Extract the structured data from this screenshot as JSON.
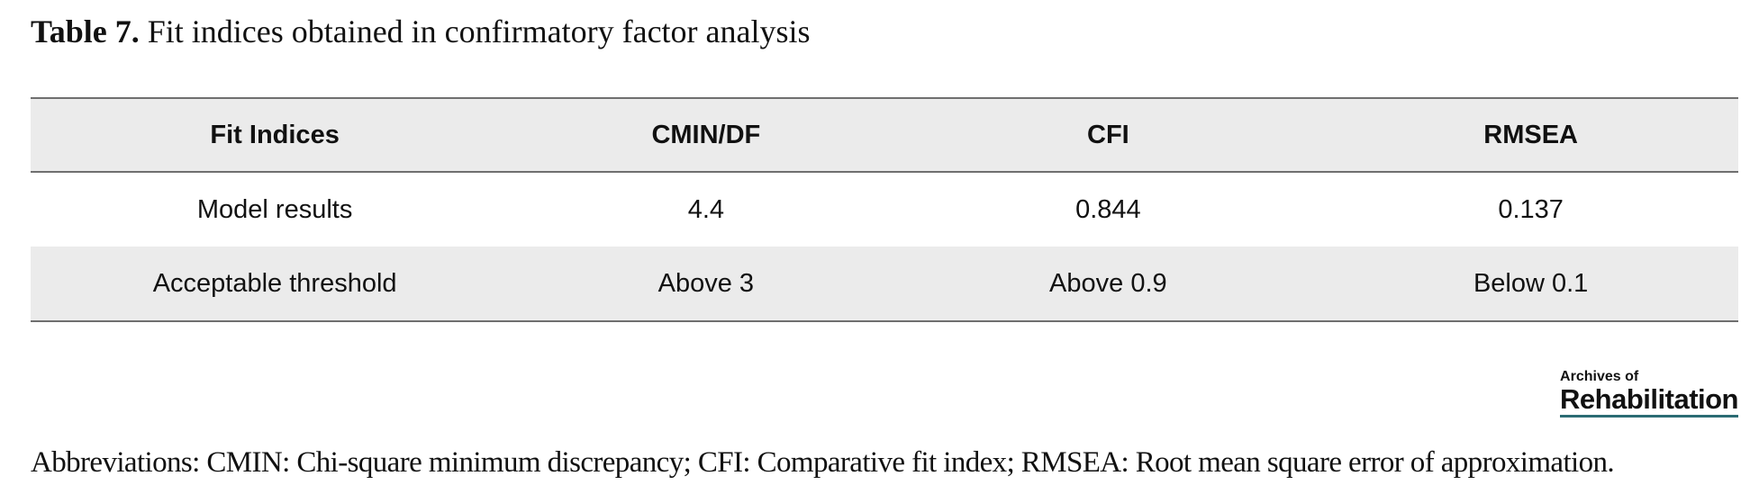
{
  "caption": {
    "label": "Table 7.",
    "text": " Fit indices obtained in confirmatory factor analysis"
  },
  "table": {
    "headers": [
      "Fit Indices",
      "CMIN/DF",
      "CFI",
      "RMSEA"
    ],
    "rows": [
      [
        "Model results",
        "4.4",
        "0.844",
        "0.137"
      ],
      [
        "Acceptable threshold",
        "Above 3",
        "Above 0.9",
        "Below 0.1"
      ]
    ]
  },
  "logo": {
    "line1": "Archives of",
    "line2": "Rehabilitation"
  },
  "footnote": "Abbreviations: CMIN: Chi-square minimum discrepancy; CFI: Comparative fit index; RMSEA: Root mean square error of approximation."
}
